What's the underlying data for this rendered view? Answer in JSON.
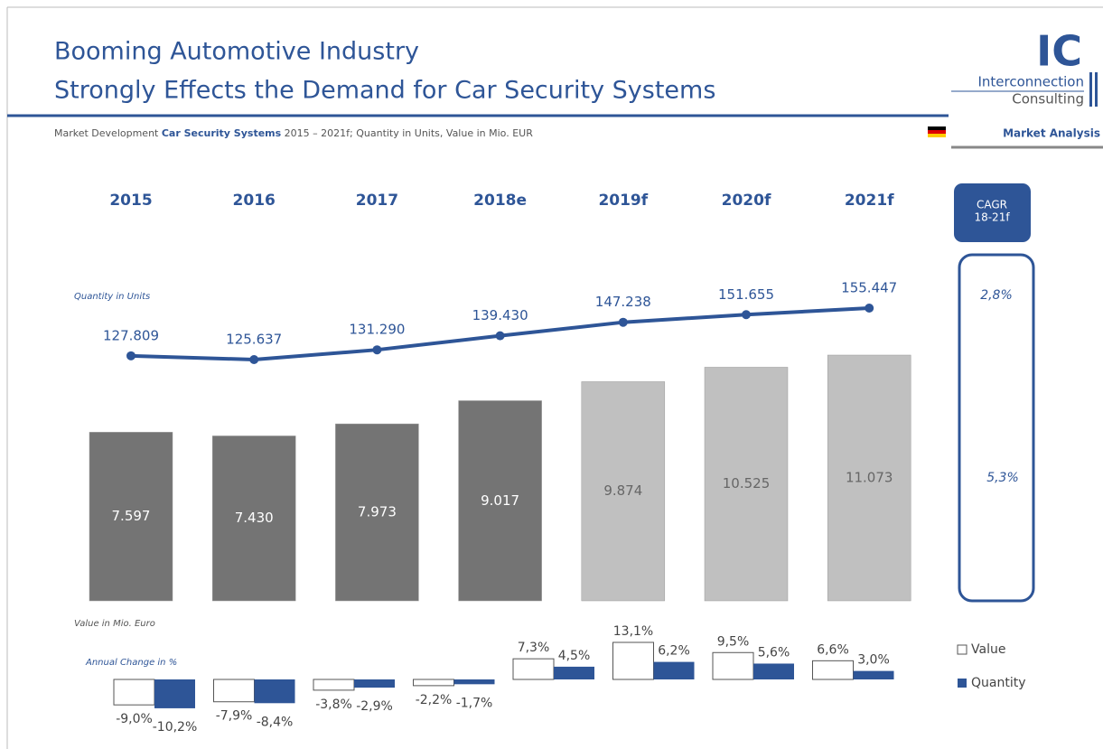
{
  "header": {
    "title": [
      "Booming Automotive Industry",
      "Strongly Effects the Demand for Car Security Systems"
    ],
    "subtitle": [
      "Market Development ",
      "Car Security Systems",
      " 2015 – 2021f; Quantity in Units, Value in Mio. EUR"
    ],
    "logo": [
      "IC",
      "Interconnection",
      "Consulting"
    ],
    "section": "Market Analysis"
  },
  "chart_data": [
    {
      "type": "line",
      "label": "Quantity in Units",
      "categories": [
        "2015",
        "2016",
        "2017",
        "2018e",
        "2019f",
        "2020f",
        "2021f"
      ],
      "values": [
        127809,
        125637,
        131290,
        139430,
        147238,
        151655,
        155447
      ],
      "value_labels": [
        "127.809",
        "125.637",
        "131.290",
        "139.430",
        "147.238",
        "151.655",
        "155.447"
      ],
      "color": "#2e5597"
    },
    {
      "type": "bar",
      "label": "Value in Mio. Euro",
      "values": [
        7597,
        7430,
        7973,
        9017,
        9874,
        10525,
        11073
      ],
      "value_labels": [
        "7.597",
        "7.430",
        "7.973",
        "9.017",
        "9.874",
        "10.525",
        "11.073"
      ],
      "colors": [
        "#747474",
        "#747474",
        "#747474",
        "#747474",
        "#c0c0c0",
        "#c0c0c0",
        "#c0c0c0"
      ]
    },
    {
      "type": "bar",
      "label": "Annual Change in %",
      "series": [
        {
          "name": "Value",
          "color": "#ffffff",
          "values": [
            -9.0,
            -7.9,
            -3.8,
            -2.2,
            7.3,
            13.1,
            9.5,
            6.6
          ],
          "value_labels": [
            "-9,0%",
            "-7,9%",
            "-3,8%",
            "-2,2%",
            "7,3%",
            "13,1%",
            "9,5%",
            "6,6%"
          ]
        },
        {
          "name": "Quantity",
          "color": "#2e5597",
          "values": [
            -10.2,
            -8.4,
            -2.9,
            -1.7,
            4.5,
            6.2,
            5.6,
            3.0
          ],
          "value_labels": [
            "-10,2%",
            "-8,4%",
            "-2,9%",
            "-1,7%",
            "4,5%",
            "6,2%",
            "5,6%",
            "3,0%"
          ]
        }
      ]
    }
  ],
  "cagr": {
    "title": [
      "CAGR",
      "18-21f"
    ],
    "quantity": 2.8,
    "quantity_label": "2,8%",
    "value": 5.3,
    "value_label": "5,3%"
  }
}
